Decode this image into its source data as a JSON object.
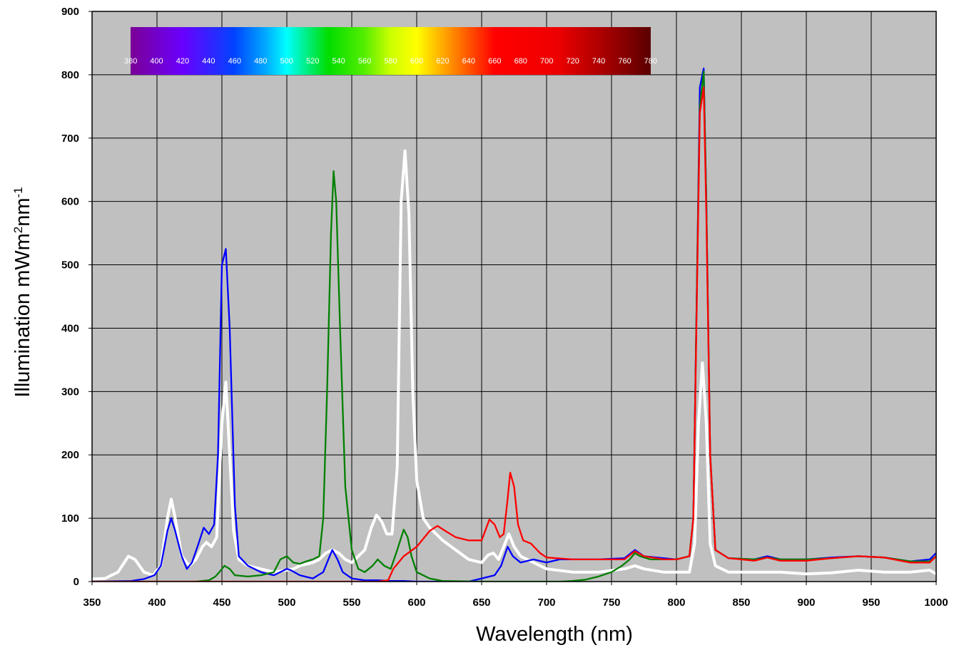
{
  "chart_data": {
    "type": "line",
    "xlabel": "Wavelength (nm)",
    "ylabel": "Illumination mWm",
    "ylabel_sup1": "2",
    "ylabel_mid": "nm",
    "ylabel_sup2": "-1",
    "xlim": [
      350,
      1000
    ],
    "ylim": [
      0,
      900
    ],
    "x_ticks": [
      350,
      400,
      450,
      500,
      550,
      600,
      650,
      700,
      750,
      800,
      850,
      900,
      950,
      1000
    ],
    "y_ticks": [
      0,
      100,
      200,
      300,
      400,
      500,
      600,
      700,
      800,
      900
    ],
    "grid": true,
    "background": "#c0c0c0",
    "spectrum_strip": {
      "range": [
        380,
        780
      ],
      "labels": [
        "380",
        "400",
        "420",
        "440",
        "460",
        "480",
        "500",
        "520",
        "540",
        "560",
        "580",
        "600",
        "620",
        "640",
        "660",
        "680",
        "700",
        "720",
        "740",
        "760",
        "780"
      ]
    },
    "series": [
      {
        "color": "#ffffff",
        "points": [
          [
            350,
            4
          ],
          [
            360,
            5
          ],
          [
            370,
            15
          ],
          [
            378,
            40
          ],
          [
            383,
            35
          ],
          [
            390,
            15
          ],
          [
            397,
            10
          ],
          [
            403,
            25
          ],
          [
            408,
            100
          ],
          [
            411,
            130
          ],
          [
            414,
            100
          ],
          [
            419,
            40
          ],
          [
            425,
            25
          ],
          [
            430,
            35
          ],
          [
            435,
            55
          ],
          [
            438,
            62
          ],
          [
            442,
            55
          ],
          [
            446,
            70
          ],
          [
            450,
            250
          ],
          [
            453,
            315
          ],
          [
            456,
            200
          ],
          [
            459,
            80
          ],
          [
            463,
            35
          ],
          [
            470,
            25
          ],
          [
            480,
            20
          ],
          [
            490,
            15
          ],
          [
            500,
            18
          ],
          [
            505,
            20
          ],
          [
            510,
            25
          ],
          [
            520,
            30
          ],
          [
            525,
            35
          ],
          [
            530,
            45
          ],
          [
            535,
            50
          ],
          [
            540,
            45
          ],
          [
            545,
            35
          ],
          [
            550,
            30
          ],
          [
            555,
            40
          ],
          [
            560,
            50
          ],
          [
            565,
            85
          ],
          [
            569,
            105
          ],
          [
            573,
            95
          ],
          [
            577,
            75
          ],
          [
            581,
            75
          ],
          [
            585,
            180
          ],
          [
            588,
            600
          ],
          [
            591,
            680
          ],
          [
            594,
            580
          ],
          [
            597,
            300
          ],
          [
            600,
            160
          ],
          [
            605,
            100
          ],
          [
            610,
            85
          ],
          [
            615,
            75
          ],
          [
            620,
            65
          ],
          [
            630,
            50
          ],
          [
            640,
            35
          ],
          [
            650,
            30
          ],
          [
            655,
            42
          ],
          [
            659,
            45
          ],
          [
            663,
            35
          ],
          [
            667,
            55
          ],
          [
            671,
            75
          ],
          [
            675,
            55
          ],
          [
            680,
            40
          ],
          [
            690,
            30
          ],
          [
            700,
            20
          ],
          [
            720,
            15
          ],
          [
            740,
            15
          ],
          [
            760,
            20
          ],
          [
            768,
            25
          ],
          [
            775,
            20
          ],
          [
            790,
            15
          ],
          [
            810,
            15
          ],
          [
            814,
            60
          ],
          [
            817,
            250
          ],
          [
            820,
            345
          ],
          [
            823,
            250
          ],
          [
            826,
            60
          ],
          [
            830,
            25
          ],
          [
            840,
            15
          ],
          [
            860,
            15
          ],
          [
            880,
            15
          ],
          [
            900,
            12
          ],
          [
            920,
            14
          ],
          [
            940,
            18
          ],
          [
            960,
            15
          ],
          [
            980,
            15
          ],
          [
            995,
            18
          ],
          [
            1000,
            12
          ]
        ]
      },
      {
        "color": "#0000ff",
        "points": [
          [
            350,
            0
          ],
          [
            380,
            1
          ],
          [
            390,
            4
          ],
          [
            398,
            10
          ],
          [
            403,
            25
          ],
          [
            408,
            80
          ],
          [
            411,
            100
          ],
          [
            414,
            80
          ],
          [
            419,
            40
          ],
          [
            423,
            20
          ],
          [
            427,
            30
          ],
          [
            432,
            60
          ],
          [
            436,
            85
          ],
          [
            440,
            75
          ],
          [
            444,
            90
          ],
          [
            447,
            200
          ],
          [
            450,
            500
          ],
          [
            453,
            525
          ],
          [
            456,
            400
          ],
          [
            460,
            120
          ],
          [
            463,
            40
          ],
          [
            470,
            25
          ],
          [
            480,
            15
          ],
          [
            490,
            10
          ],
          [
            500,
            20
          ],
          [
            503,
            18
          ],
          [
            510,
            10
          ],
          [
            520,
            5
          ],
          [
            528,
            15
          ],
          [
            532,
            35
          ],
          [
            535,
            50
          ],
          [
            539,
            35
          ],
          [
            543,
            15
          ],
          [
            550,
            5
          ],
          [
            560,
            2
          ],
          [
            570,
            2
          ],
          [
            580,
            1
          ],
          [
            590,
            1
          ],
          [
            600,
            0
          ],
          [
            640,
            0
          ],
          [
            650,
            5
          ],
          [
            660,
            10
          ],
          [
            665,
            25
          ],
          [
            670,
            55
          ],
          [
            674,
            40
          ],
          [
            680,
            30
          ],
          [
            690,
            35
          ],
          [
            700,
            30
          ],
          [
            710,
            35
          ],
          [
            720,
            35
          ],
          [
            740,
            35
          ],
          [
            760,
            37
          ],
          [
            768,
            50
          ],
          [
            775,
            40
          ],
          [
            790,
            37
          ],
          [
            800,
            35
          ],
          [
            810,
            40
          ],
          [
            813,
            100
          ],
          [
            816,
            500
          ],
          [
            818,
            780
          ],
          [
            821,
            810
          ],
          [
            823,
            600
          ],
          [
            826,
            200
          ],
          [
            830,
            50
          ],
          [
            840,
            37
          ],
          [
            860,
            35
          ],
          [
            870,
            40
          ],
          [
            880,
            35
          ],
          [
            900,
            35
          ],
          [
            920,
            38
          ],
          [
            940,
            40
          ],
          [
            960,
            38
          ],
          [
            980,
            32
          ],
          [
            995,
            35
          ],
          [
            1000,
            45
          ]
        ]
      },
      {
        "color": "#008000",
        "points": [
          [
            350,
            0
          ],
          [
            430,
            0
          ],
          [
            440,
            2
          ],
          [
            445,
            8
          ],
          [
            448,
            15
          ],
          [
            452,
            25
          ],
          [
            456,
            20
          ],
          [
            460,
            10
          ],
          [
            470,
            8
          ],
          [
            480,
            10
          ],
          [
            490,
            15
          ],
          [
            495,
            35
          ],
          [
            500,
            40
          ],
          [
            505,
            30
          ],
          [
            510,
            28
          ],
          [
            515,
            32
          ],
          [
            520,
            35
          ],
          [
            525,
            40
          ],
          [
            528,
            100
          ],
          [
            531,
            300
          ],
          [
            534,
            550
          ],
          [
            536,
            648
          ],
          [
            538,
            600
          ],
          [
            541,
            400
          ],
          [
            545,
            150
          ],
          [
            550,
            50
          ],
          [
            555,
            20
          ],
          [
            560,
            15
          ],
          [
            566,
            25
          ],
          [
            570,
            35
          ],
          [
            575,
            25
          ],
          [
            580,
            20
          ],
          [
            585,
            50
          ],
          [
            590,
            82
          ],
          [
            593,
            70
          ],
          [
            596,
            40
          ],
          [
            600,
            15
          ],
          [
            610,
            5
          ],
          [
            620,
            1
          ],
          [
            650,
            0
          ],
          [
            700,
            0
          ],
          [
            710,
            0
          ],
          [
            720,
            1
          ],
          [
            730,
            3
          ],
          [
            740,
            8
          ],
          [
            750,
            15
          ],
          [
            758,
            25
          ],
          [
            764,
            35
          ],
          [
            768,
            45
          ],
          [
            772,
            40
          ],
          [
            780,
            35
          ],
          [
            790,
            35
          ],
          [
            800,
            35
          ],
          [
            810,
            40
          ],
          [
            813,
            100
          ],
          [
            816,
            500
          ],
          [
            818,
            750
          ],
          [
            821,
            805
          ],
          [
            823,
            600
          ],
          [
            826,
            200
          ],
          [
            830,
            50
          ],
          [
            840,
            37
          ],
          [
            860,
            35
          ],
          [
            870,
            38
          ],
          [
            880,
            35
          ],
          [
            900,
            35
          ],
          [
            920,
            37
          ],
          [
            940,
            40
          ],
          [
            960,
            38
          ],
          [
            980,
            32
          ],
          [
            995,
            32
          ],
          [
            1000,
            40
          ]
        ]
      },
      {
        "color": "#ff0000",
        "points": [
          [
            350,
            0
          ],
          [
            570,
            0
          ],
          [
            578,
            2
          ],
          [
            582,
            20
          ],
          [
            590,
            40
          ],
          [
            600,
            55
          ],
          [
            610,
            80
          ],
          [
            616,
            88
          ],
          [
            622,
            80
          ],
          [
            630,
            70
          ],
          [
            640,
            65
          ],
          [
            650,
            65
          ],
          [
            656,
            98
          ],
          [
            660,
            90
          ],
          [
            664,
            70
          ],
          [
            667,
            75
          ],
          [
            670,
            130
          ],
          [
            672,
            172
          ],
          [
            675,
            150
          ],
          [
            678,
            90
          ],
          [
            682,
            65
          ],
          [
            688,
            60
          ],
          [
            695,
            45
          ],
          [
            700,
            38
          ],
          [
            720,
            35
          ],
          [
            740,
            35
          ],
          [
            760,
            35
          ],
          [
            768,
            48
          ],
          [
            775,
            40
          ],
          [
            790,
            35
          ],
          [
            800,
            35
          ],
          [
            810,
            40
          ],
          [
            813,
            100
          ],
          [
            816,
            480
          ],
          [
            818,
            740
          ],
          [
            821,
            780
          ],
          [
            823,
            580
          ],
          [
            826,
            200
          ],
          [
            830,
            50
          ],
          [
            840,
            37
          ],
          [
            860,
            33
          ],
          [
            870,
            38
          ],
          [
            880,
            33
          ],
          [
            900,
            33
          ],
          [
            920,
            37
          ],
          [
            940,
            40
          ],
          [
            960,
            38
          ],
          [
            980,
            30
          ],
          [
            995,
            30
          ],
          [
            1000,
            40
          ]
        ]
      }
    ]
  }
}
